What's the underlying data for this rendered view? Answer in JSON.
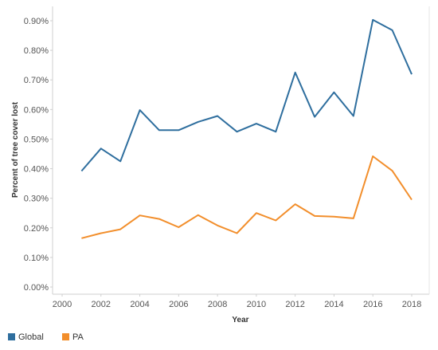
{
  "chart_data": {
    "type": "line",
    "title": "",
    "xlabel": "Year",
    "ylabel": "Percent of tree cover lost",
    "xlim": [
      2000,
      2018
    ],
    "ylim": [
      0,
      0.95
    ],
    "x_ticks": [
      "2000",
      "2002",
      "2004",
      "2006",
      "2008",
      "2010",
      "2012",
      "2014",
      "2016",
      "2018"
    ],
    "y_ticks": [
      "0.00%",
      "0.10%",
      "0.20%",
      "0.30%",
      "0.40%",
      "0.50%",
      "0.60%",
      "0.70%",
      "0.80%",
      "0.90%"
    ],
    "x": [
      2001,
      2002,
      2003,
      2004,
      2005,
      2006,
      2007,
      2008,
      2009,
      2010,
      2011,
      2012,
      2013,
      2014,
      2015,
      2016,
      2017,
      2018
    ],
    "series": [
      {
        "name": "Global",
        "color": "#2e6e9e",
        "values": [
          0.392,
          0.468,
          0.425,
          0.598,
          0.53,
          0.53,
          0.558,
          0.578,
          0.525,
          0.552,
          0.525,
          0.725,
          0.575,
          0.658,
          0.578,
          0.903,
          0.868,
          0.719
        ]
      },
      {
        "name": "PA",
        "color": "#f28e2b",
        "values": [
          0.165,
          0.182,
          0.195,
          0.242,
          0.23,
          0.202,
          0.243,
          0.208,
          0.182,
          0.25,
          0.225,
          0.28,
          0.24,
          0.238,
          0.232,
          0.442,
          0.393,
          0.295
        ]
      }
    ],
    "grid": false,
    "legend_position": "bottom-left"
  }
}
